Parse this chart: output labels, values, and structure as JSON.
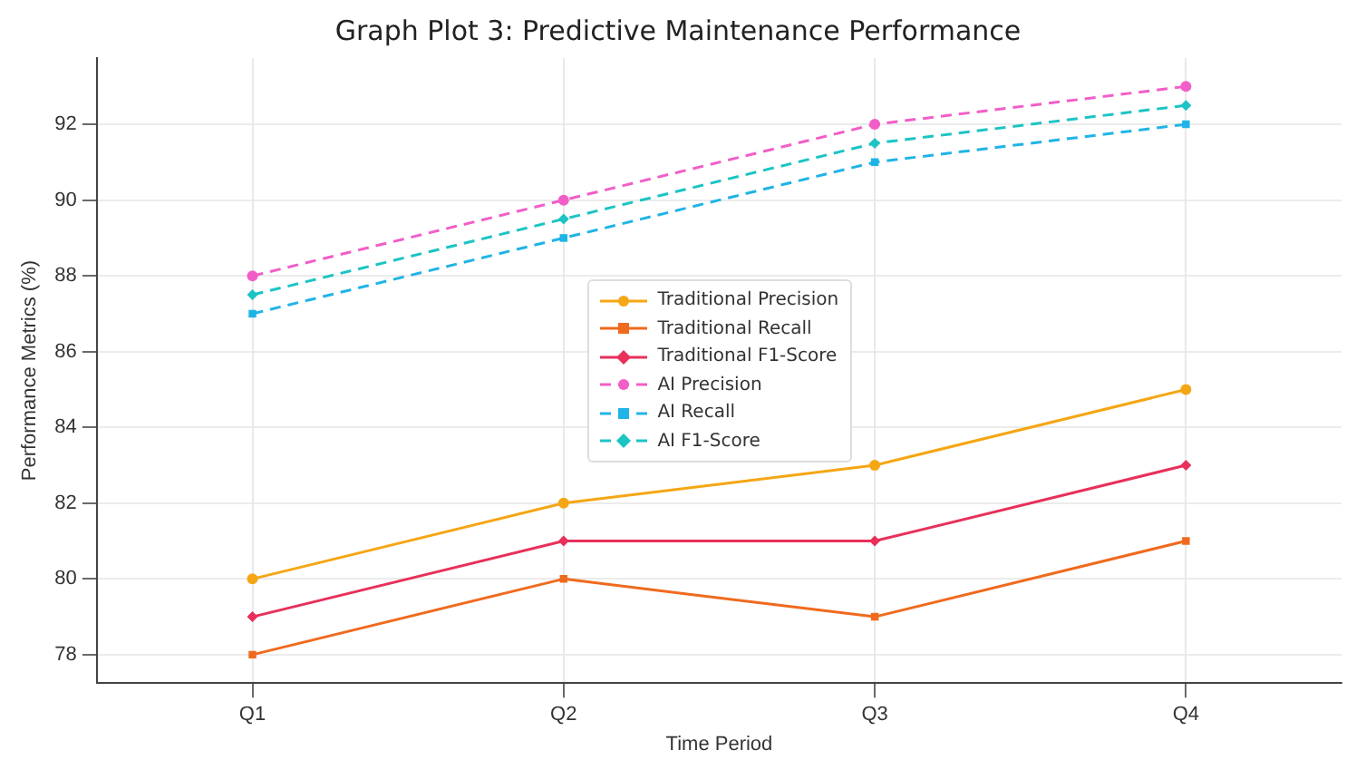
{
  "chart_data": {
    "type": "line",
    "title": "Graph Plot 3: Predictive Maintenance Performance",
    "xlabel": "Time Period",
    "ylabel": "Performance Metrics (%)",
    "categories": [
      "Q1",
      "Q2",
      "Q3",
      "Q4"
    ],
    "series": [
      {
        "name": "Traditional Precision",
        "color": "#f5a614",
        "values": [
          80,
          82,
          83,
          85
        ],
        "marker": "circle",
        "line_style": "solid"
      },
      {
        "name": "Traditional Recall",
        "color": "#f06a1e",
        "values": [
          78,
          80,
          79,
          81
        ],
        "marker": "square",
        "line_style": "solid"
      },
      {
        "name": "Traditional F1-Score",
        "color": "#e8305a",
        "values": [
          79,
          81,
          81,
          83
        ],
        "marker": "diamond",
        "line_style": "solid"
      },
      {
        "name": "AI Precision",
        "color": "#f25ec8",
        "values": [
          88,
          90,
          92,
          93
        ],
        "marker": "circle",
        "line_style": "dashed"
      },
      {
        "name": "AI Recall",
        "color": "#20b4e6",
        "values": [
          87,
          89,
          91,
          92
        ],
        "marker": "square",
        "line_style": "dashed"
      },
      {
        "name": "AI F1-Score",
        "color": "#1cc4c4",
        "values": [
          87.5,
          89.5,
          91.5,
          92.5
        ],
        "marker": "diamond",
        "line_style": "dashed"
      }
    ],
    "ylim": [
      77.25,
      93.75
    ],
    "yticks": [
      78,
      80,
      82,
      84,
      86,
      88,
      90,
      92
    ],
    "grid": true,
    "legend": "center"
  }
}
